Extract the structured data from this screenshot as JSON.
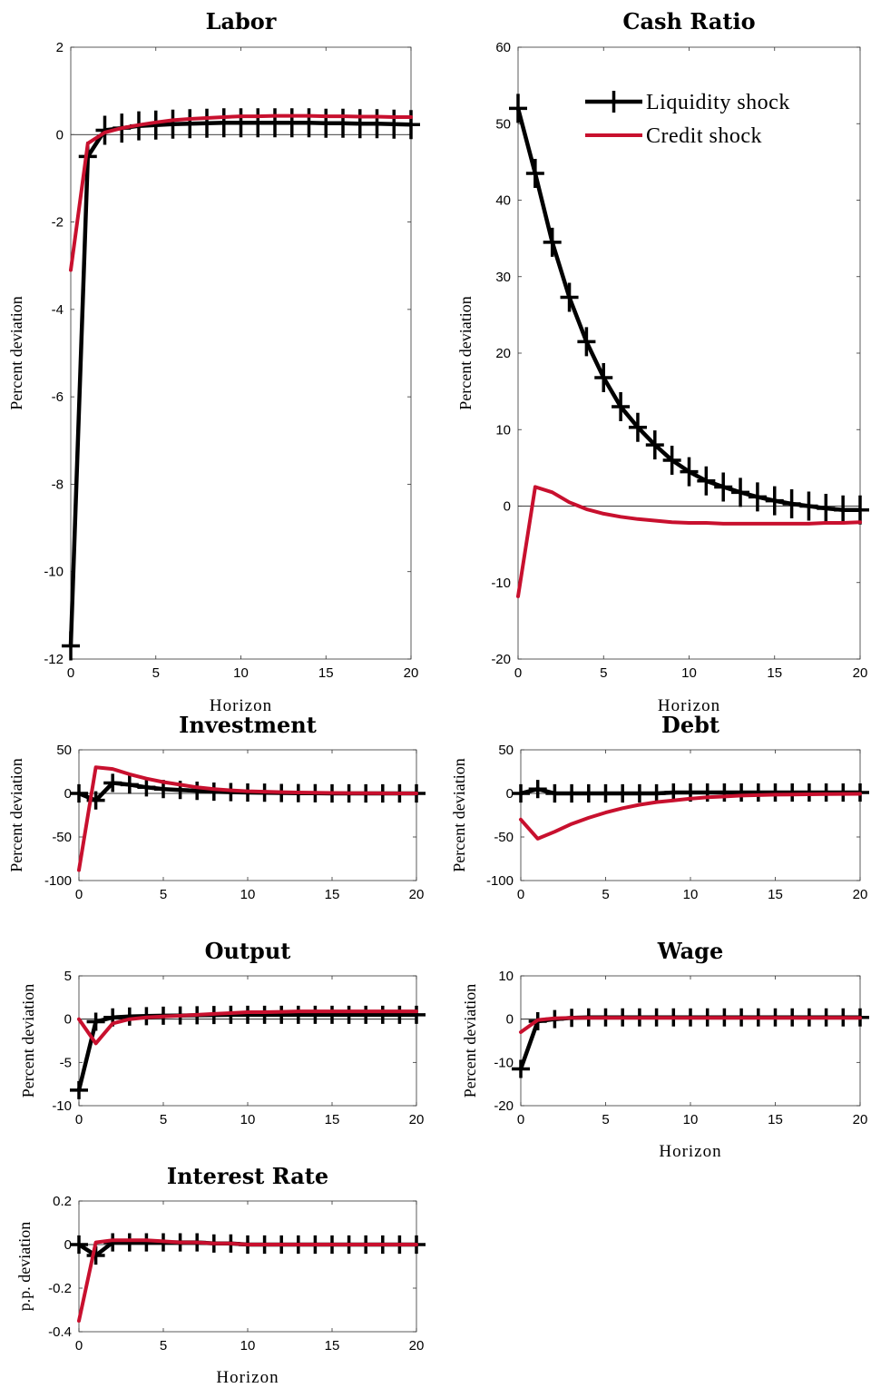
{
  "colors": {
    "liquidity": "#000000",
    "credit": "#c8102e",
    "zero_line": "#000000"
  },
  "legend": {
    "location": "top-right",
    "panel": "Cash Ratio",
    "entries": [
      "Liquidity shock",
      "Credit shock"
    ]
  },
  "chart_data": [
    {
      "type": "line",
      "title": "Labor",
      "xlabel": "Horizon",
      "ylabel": "Percent deviation",
      "xlim": [
        0,
        20
      ],
      "ylim": [
        -12,
        2
      ],
      "xticks": [
        0,
        5,
        10,
        15,
        20
      ],
      "yticks": [
        2,
        0,
        -2,
        -4,
        -6,
        -8,
        -10,
        -12
      ],
      "x": [
        0,
        1,
        2,
        3,
        4,
        5,
        6,
        7,
        8,
        9,
        10,
        11,
        12,
        13,
        14,
        15,
        16,
        17,
        18,
        19,
        20
      ],
      "series": [
        {
          "name": "Liquidity shock",
          "markers": "plus",
          "values": [
            -11.7,
            -0.5,
            0.1,
            0.15,
            0.2,
            0.22,
            0.24,
            0.25,
            0.26,
            0.27,
            0.27,
            0.27,
            0.27,
            0.27,
            0.27,
            0.26,
            0.26,
            0.25,
            0.25,
            0.24,
            0.23
          ]
        },
        {
          "name": "Credit shock",
          "markers": "none",
          "values": [
            -3.1,
            -0.2,
            0.05,
            0.15,
            0.22,
            0.28,
            0.33,
            0.36,
            0.38,
            0.4,
            0.42,
            0.42,
            0.43,
            0.43,
            0.43,
            0.42,
            0.42,
            0.41,
            0.41,
            0.4,
            0.4
          ]
        }
      ]
    },
    {
      "type": "line",
      "title": "Cash Ratio",
      "xlabel": "Horizon",
      "ylabel": "Percent deviation",
      "xlim": [
        0,
        20
      ],
      "ylim": [
        -20,
        60
      ],
      "xticks": [
        0,
        5,
        10,
        15,
        20
      ],
      "yticks": [
        60,
        50,
        40,
        30,
        20,
        10,
        0,
        -10,
        -20
      ],
      "x": [
        0,
        1,
        2,
        3,
        4,
        5,
        6,
        7,
        8,
        9,
        10,
        11,
        12,
        13,
        14,
        15,
        16,
        17,
        18,
        19,
        20
      ],
      "series": [
        {
          "name": "Liquidity shock",
          "markers": "plus",
          "values": [
            52,
            43.5,
            34.5,
            27.3,
            21.5,
            16.8,
            13.0,
            10.3,
            8.0,
            6.0,
            4.5,
            3.3,
            2.5,
            1.8,
            1.2,
            0.7,
            0.3,
            0,
            -0.3,
            -0.5,
            -0.5
          ]
        },
        {
          "name": "Credit shock",
          "markers": "none",
          "values": [
            -11.8,
            2.5,
            1.8,
            0.5,
            -0.4,
            -1.0,
            -1.4,
            -1.7,
            -1.9,
            -2.1,
            -2.2,
            -2.2,
            -2.3,
            -2.3,
            -2.3,
            -2.3,
            -2.3,
            -2.3,
            -2.2,
            -2.2,
            -2.1
          ]
        }
      ]
    },
    {
      "type": "line",
      "title": "Investment",
      "xlabel": "",
      "ylabel": "Percent deviation",
      "xlim": [
        0,
        20
      ],
      "ylim": [
        -100,
        50
      ],
      "xticks": [
        0,
        5,
        10,
        15,
        20
      ],
      "yticks": [
        50,
        0,
        -50,
        -100
      ],
      "x": [
        0,
        1,
        2,
        3,
        4,
        5,
        6,
        7,
        8,
        9,
        10,
        11,
        12,
        13,
        14,
        15,
        16,
        17,
        18,
        19,
        20
      ],
      "series": [
        {
          "name": "Liquidity shock",
          "markers": "plus",
          "values": [
            0,
            -8,
            12,
            10,
            7,
            5,
            4,
            3,
            2,
            1.5,
            1,
            0.8,
            0.5,
            0.3,
            0.2,
            0,
            0,
            0,
            0,
            0,
            0
          ]
        },
        {
          "name": "Credit shock",
          "markers": "none",
          "values": [
            -88,
            30,
            28,
            22,
            17,
            13,
            10,
            7,
            5,
            3.5,
            2.5,
            2,
            1.5,
            1,
            0.8,
            0.5,
            0.3,
            0.2,
            0.1,
            0,
            0
          ]
        }
      ]
    },
    {
      "type": "line",
      "title": "Debt",
      "xlabel": "",
      "ylabel": "Percent deviation",
      "xlim": [
        0,
        20
      ],
      "ylim": [
        -100,
        50
      ],
      "xticks": [
        0,
        5,
        10,
        15,
        20
      ],
      "yticks": [
        50,
        0,
        -50,
        -100
      ],
      "x": [
        0,
        1,
        2,
        3,
        4,
        5,
        6,
        7,
        8,
        9,
        10,
        11,
        12,
        13,
        14,
        15,
        16,
        17,
        18,
        19,
        20
      ],
      "series": [
        {
          "name": "Liquidity shock",
          "markers": "plus",
          "values": [
            0,
            5,
            0,
            0,
            0,
            0,
            0,
            0,
            0,
            1,
            1,
            1,
            1,
            1,
            1,
            1,
            1,
            1,
            1,
            1,
            1
          ]
        },
        {
          "name": "Credit shock",
          "markers": "none",
          "values": [
            -30,
            -52,
            -44,
            -35,
            -28,
            -22,
            -17,
            -13,
            -10,
            -8,
            -6,
            -4.5,
            -3.5,
            -2.5,
            -2,
            -1.5,
            -1.2,
            -1,
            -0.8,
            -0.6,
            -0.5
          ]
        }
      ]
    },
    {
      "type": "line",
      "title": "Output",
      "xlabel": "",
      "ylabel": "Percent deviation",
      "xlim": [
        0,
        20
      ],
      "ylim": [
        -10,
        5
      ],
      "xticks": [
        0,
        5,
        10,
        15,
        20
      ],
      "yticks": [
        5,
        0,
        -5,
        -10
      ],
      "x": [
        0,
        1,
        2,
        3,
        4,
        5,
        6,
        7,
        8,
        9,
        10,
        11,
        12,
        13,
        14,
        15,
        16,
        17,
        18,
        19,
        20
      ],
      "series": [
        {
          "name": "Liquidity shock",
          "markers": "plus",
          "values": [
            -8.2,
            -0.3,
            0.2,
            0.3,
            0.35,
            0.4,
            0.42,
            0.45,
            0.48,
            0.5,
            0.5,
            0.5,
            0.5,
            0.5,
            0.5,
            0.5,
            0.5,
            0.5,
            0.5,
            0.5,
            0.5
          ]
        },
        {
          "name": "Credit shock",
          "markers": "none",
          "values": [
            0,
            -2.8,
            -0.5,
            0,
            0.2,
            0.3,
            0.4,
            0.5,
            0.6,
            0.7,
            0.8,
            0.8,
            0.85,
            0.9,
            0.9,
            0.9,
            0.9,
            0.9,
            0.9,
            0.9,
            0.9
          ]
        }
      ]
    },
    {
      "type": "line",
      "title": "Wage",
      "xlabel": "Horizon",
      "ylabel": "Percent deviation",
      "xlim": [
        0,
        20
      ],
      "ylim": [
        -20,
        10
      ],
      "xticks": [
        0,
        5,
        10,
        15,
        20
      ],
      "yticks": [
        10,
        0,
        -10,
        -20
      ],
      "x": [
        0,
        1,
        2,
        3,
        4,
        5,
        6,
        7,
        8,
        9,
        10,
        11,
        12,
        13,
        14,
        15,
        16,
        17,
        18,
        19,
        20
      ],
      "series": [
        {
          "name": "Liquidity shock",
          "markers": "plus",
          "values": [
            -11.5,
            -0.5,
            0,
            0.3,
            0.4,
            0.4,
            0.4,
            0.4,
            0.4,
            0.4,
            0.4,
            0.4,
            0.4,
            0.4,
            0.4,
            0.4,
            0.4,
            0.4,
            0.4,
            0.4,
            0.4
          ]
        },
        {
          "name": "Credit shock",
          "markers": "none",
          "values": [
            -3,
            -0.2,
            0.2,
            0.3,
            0.3,
            0.3,
            0.3,
            0.3,
            0.3,
            0.3,
            0.3,
            0.3,
            0.3,
            0.3,
            0.3,
            0.3,
            0.3,
            0.3,
            0.3,
            0.3,
            0.3
          ]
        }
      ]
    },
    {
      "type": "line",
      "title": "Interest Rate",
      "xlabel": "Horizon",
      "ylabel": "p.p. deviation",
      "xlim": [
        0,
        20
      ],
      "ylim": [
        -0.4,
        0.2
      ],
      "xticks": [
        0,
        5,
        10,
        15,
        20
      ],
      "yticks": [
        0.2,
        0,
        -0.2,
        -0.4
      ],
      "x": [
        0,
        1,
        2,
        3,
        4,
        5,
        6,
        7,
        8,
        9,
        10,
        11,
        12,
        13,
        14,
        15,
        16,
        17,
        18,
        19,
        20
      ],
      "series": [
        {
          "name": "Liquidity shock",
          "markers": "plus",
          "values": [
            0,
            -0.05,
            0.01,
            0.01,
            0.01,
            0.01,
            0.01,
            0.01,
            0.005,
            0.005,
            0,
            0,
            0,
            0,
            0,
            0,
            0,
            0,
            0,
            0,
            0
          ]
        },
        {
          "name": "Credit shock",
          "markers": "none",
          "values": [
            -0.35,
            0.01,
            0.02,
            0.02,
            0.02,
            0.015,
            0.01,
            0.01,
            0.005,
            0.005,
            0,
            0,
            0,
            0,
            0,
            0,
            0,
            0,
            0,
            0,
            0
          ]
        }
      ]
    }
  ]
}
